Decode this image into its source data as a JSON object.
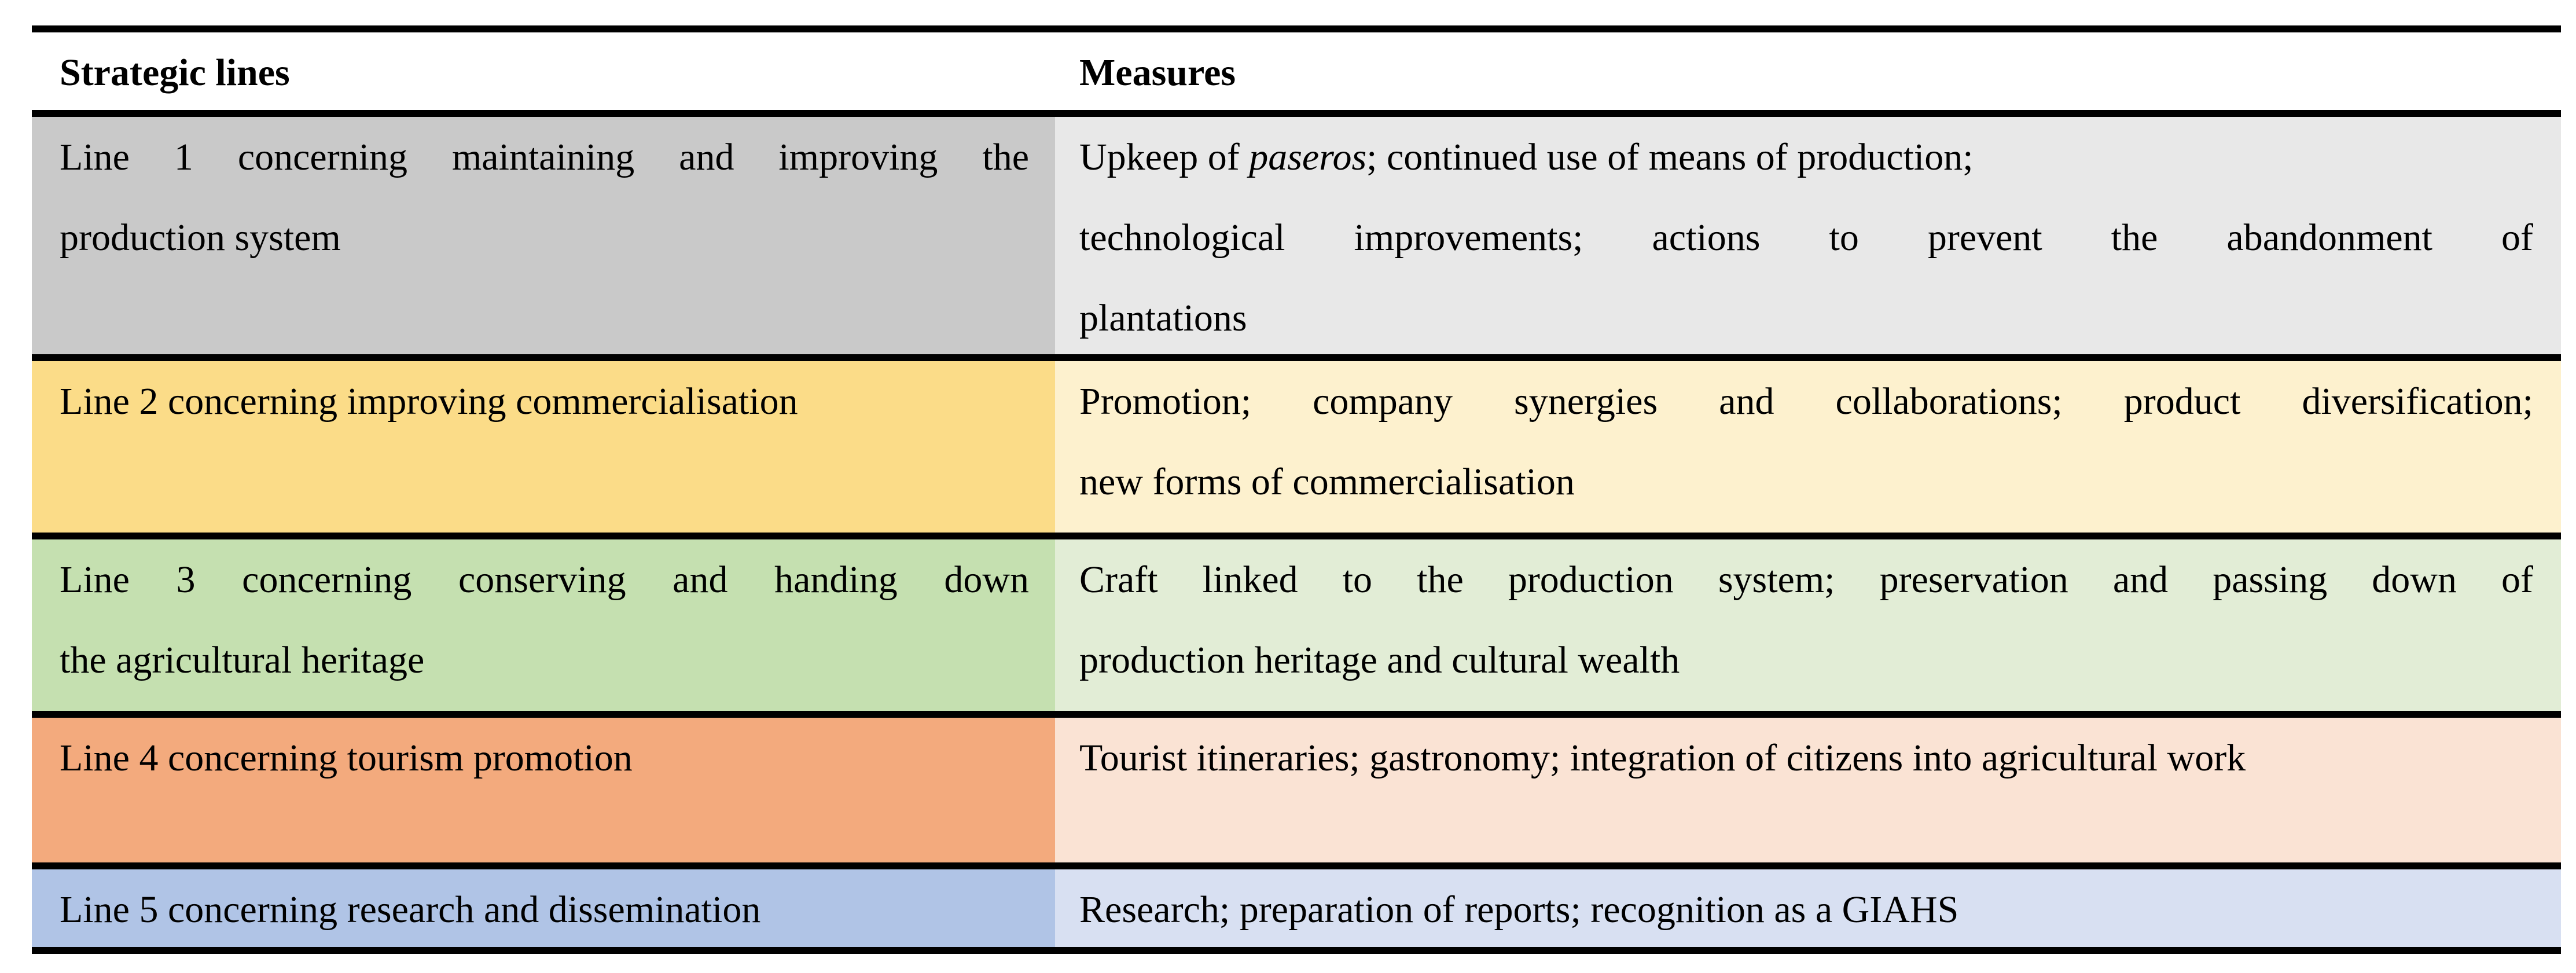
{
  "table": {
    "border_color": "#000000",
    "header": {
      "strategic": "Strategic lines",
      "measures": "Measures"
    },
    "r1": {
      "left_bg": "#c9c9c9",
      "right_bg": "#e8e8e8",
      "left_line1": "Line 1 concerning maintaining and improving the",
      "left_line2": "production system",
      "right_line1_pre": "Upkeep of ",
      "right_line1_italic": "paseros",
      "right_line1_post": "; continued use of means of production;",
      "right_line2": "technological improvements; actions to prevent the abandonment of",
      "right_line3": "plantations"
    },
    "r2": {
      "left_bg": "#fbdc88",
      "right_bg": "#fdf1ce",
      "left_line1": "Line 2 concerning improving commercialisation",
      "right_line1": "Promotion; company synergies and collaborations; product diversification;",
      "right_line2": "new forms of commercialisation"
    },
    "r3": {
      "left_bg": "#c5e0b0",
      "right_bg": "#e2edd6",
      "left_line1": "Line 3 concerning conserving and handing down",
      "left_line2": "the agricultural heritage",
      "right_line1": "Craft linked to the production system; preservation and passing down of",
      "right_line2": "production heritage and cultural wealth"
    },
    "r4": {
      "left_bg": "#f3aa7d",
      "right_bg": "#fae3d4",
      "left_line1": "Line 4 concerning tourism promotion",
      "right_line1": "Tourist itineraries; gastronomy; integration of citizens into agricultural work"
    },
    "r5": {
      "left_bg": "#b0c4e6",
      "right_bg": "#d8e0f2",
      "left_line1": "Line 5 concerning research and dissemination",
      "right_line1": "Research; preparation of reports; recognition as a GIAHS"
    }
  }
}
